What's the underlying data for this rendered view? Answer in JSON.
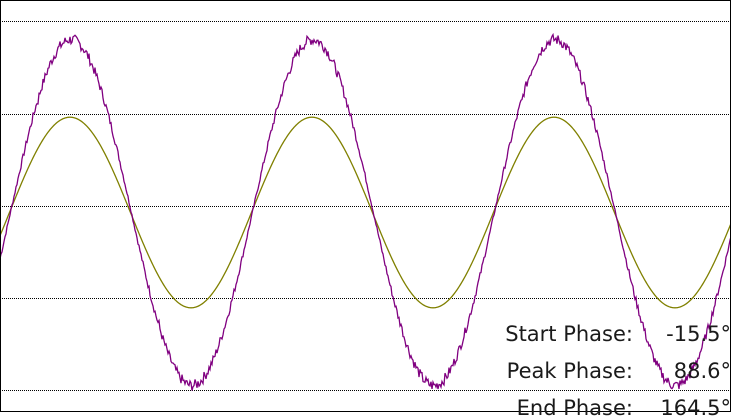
{
  "chart_data": {
    "type": "line",
    "title": "",
    "xlabel": "",
    "ylabel": "",
    "x_unit": "degrees",
    "xlim": [
      -15.5,
      1072
    ],
    "ylim": [
      -1.0,
      1.0
    ],
    "grid": {
      "horizontal": true,
      "vertical": false,
      "style": "dotted"
    },
    "series": [
      {
        "color": "#808000",
        "shape": "sine",
        "amplitude_fraction_of_peak": 0.54,
        "peak_phase": 88.6,
        "peak_positions": [
          88.6,
          448.6
        ],
        "trough_positions": [
          -91.4,
          268.6,
          628.6
        ]
      },
      {
        "color": "#800080",
        "shape": "distorted-sine",
        "amplitude_fraction_of_peak": 1.0,
        "peak_positions": [
          90,
          450
        ],
        "trough_positions": [
          270,
          630
        ],
        "plateau_level_rising": 0.6,
        "plateau_level_falling": -0.6
      }
    ],
    "annotations": [
      {
        "label": "Start Phase:",
        "value": "-15.5°"
      },
      {
        "label": "Peak Phase:",
        "value": "88.6°"
      },
      {
        "label": "End Phase:",
        "value": "164.5°"
      }
    ]
  },
  "colors": {
    "background": "#ffffff",
    "grid": "#000000",
    "olive_wave": "#808000",
    "purple_wave": "#800080",
    "text": "#1a1a1a"
  }
}
